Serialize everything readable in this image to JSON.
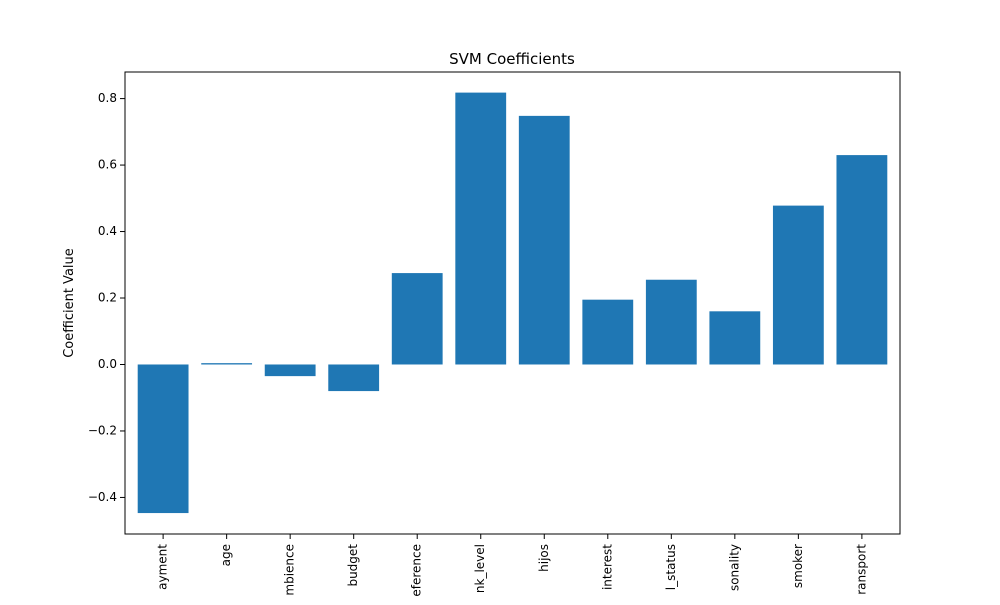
{
  "chart_data": {
    "type": "bar",
    "title": "SVM Coefficients",
    "xlabel": "",
    "ylabel": "Coefficient Value",
    "categories": [
      "ayment",
      "age",
      "mbience",
      "budget",
      "eference",
      "nk_level",
      "hijos",
      "interest",
      "l_status",
      "sonality",
      "smoker",
      "ransport"
    ],
    "values": [
      -0.447,
      0.004,
      -0.035,
      -0.08,
      0.275,
      0.818,
      0.748,
      0.195,
      0.255,
      0.16,
      0.478,
      0.63
    ],
    "ylim": [
      -0.51,
      0.88
    ],
    "yticks": [
      -0.4,
      -0.2,
      0.0,
      0.2,
      0.4,
      0.6,
      0.8
    ],
    "ytick_labels": [
      "−0.4",
      "−0.2",
      "0.0",
      "0.2",
      "0.4",
      "0.6",
      "0.8"
    ],
    "grid": false,
    "bar_color": "#1f77b4"
  }
}
